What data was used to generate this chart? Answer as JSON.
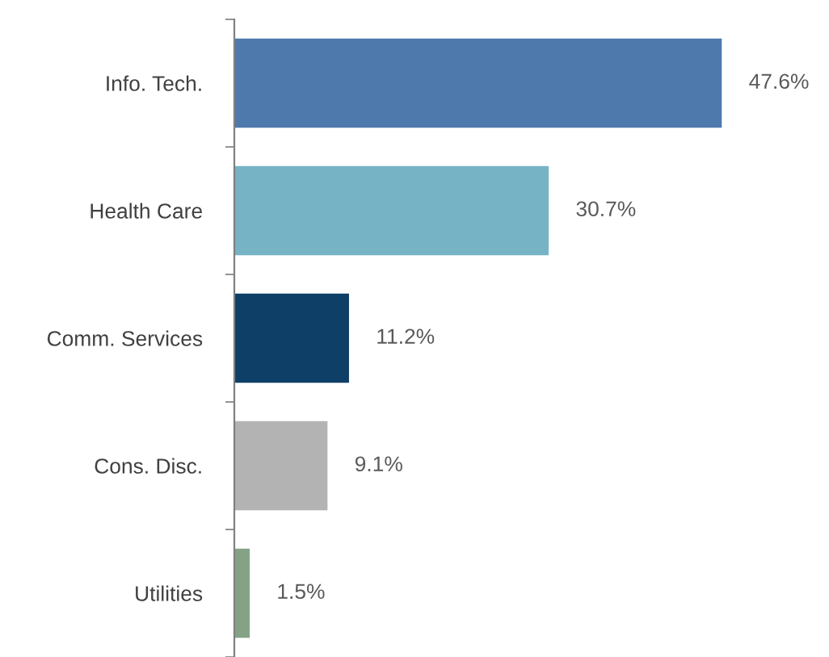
{
  "chart_data": {
    "type": "bar",
    "orientation": "horizontal",
    "categories": [
      "Info. Tech.",
      "Health Care",
      "Comm. Services",
      "Cons. Disc.",
      "Utilities"
    ],
    "values": [
      47.6,
      30.7,
      11.2,
      9.1,
      1.5
    ],
    "colors": [
      "#4e79ad",
      "#76b4c5",
      "#0e3f66",
      "#b3b3b3",
      "#84a386"
    ],
    "value_labels": [
      "47.6%",
      "30.7%",
      "11.2%",
      "9.1%",
      "1.5%"
    ],
    "grid": false,
    "legend": false
  }
}
